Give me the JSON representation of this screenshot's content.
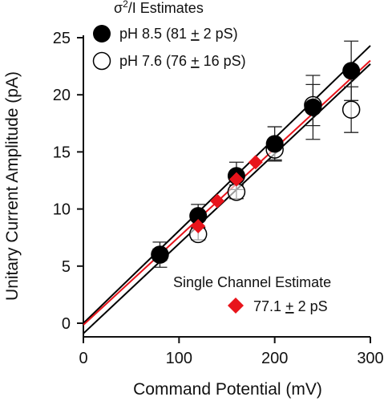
{
  "chart_data": {
    "type": "scatter",
    "title": "",
    "xlabel": "Command Potential (mV)",
    "ylabel": "Unitary Current Amplitude (pA)",
    "xlim": [
      0,
      300
    ],
    "ylim": [
      0,
      25
    ],
    "xticks": [
      "0",
      "100",
      "200",
      "300"
    ],
    "yticks": [
      "0",
      "5",
      "10",
      "15",
      "20",
      "25"
    ],
    "grid": false,
    "legend_position": "top-left",
    "legend_header": "σ²/I Estimates",
    "legend_header_base": "σ",
    "legend_header_sup": "2",
    "legend_header_tail": "/I Estimates",
    "legend2_header": "Single Channel Estimate",
    "colors": {
      "black": "#000000",
      "red": "#e8141b",
      "axis": "#111111"
    },
    "series": [
      {
        "name": "pH 8.5 (81 ± 2 pS)",
        "label_prefix": "pH 8.5 (81 ",
        "label_pm": "+",
        "label_suffix": " 2 pS)",
        "marker": "filled-circle",
        "x": [
          80,
          120,
          160,
          200,
          240,
          280
        ],
        "y": [
          6.0,
          9.4,
          12.9,
          15.7,
          18.9,
          22.1
        ],
        "err": [
          1.1,
          1.0,
          1.2,
          1.5,
          2.8,
          2.6
        ]
      },
      {
        "name": "pH 7.6 (76 ± 16 pS)",
        "label_prefix": "pH 7.6 (76 ",
        "label_pm": "+",
        "label_suffix": " 16 pS)",
        "marker": "open-circle",
        "x": [
          80,
          120,
          160,
          200,
          240,
          280
        ],
        "y": [
          6.0,
          7.8,
          11.5,
          15.2,
          19.1,
          18.7
        ],
        "err": [
          0.5,
          0.5,
          0.6,
          0.9,
          1.8,
          2.0
        ]
      },
      {
        "name": "77.1 ± 2 pS",
        "label_prefix": "77.1 ",
        "label_pm": "+",
        "label_suffix": " 2 pS",
        "marker": "red-diamond",
        "x": [
          120,
          140,
          160,
          180
        ],
        "y": [
          8.5,
          10.7,
          12.6,
          14.1
        ]
      }
    ],
    "fit_lines": [
      {
        "series": "pH 8.5",
        "color": "black",
        "x": [
          0,
          300
        ],
        "y": [
          0.0,
          24.3
        ]
      },
      {
        "series": "pH 7.6",
        "color": "black",
        "x": [
          0,
          300
        ],
        "y": [
          -0.9,
          22.7
        ]
      },
      {
        "series": "single channel",
        "color": "red",
        "x": [
          0,
          300
        ],
        "y": [
          -0.15,
          23.0
        ]
      }
    ]
  }
}
